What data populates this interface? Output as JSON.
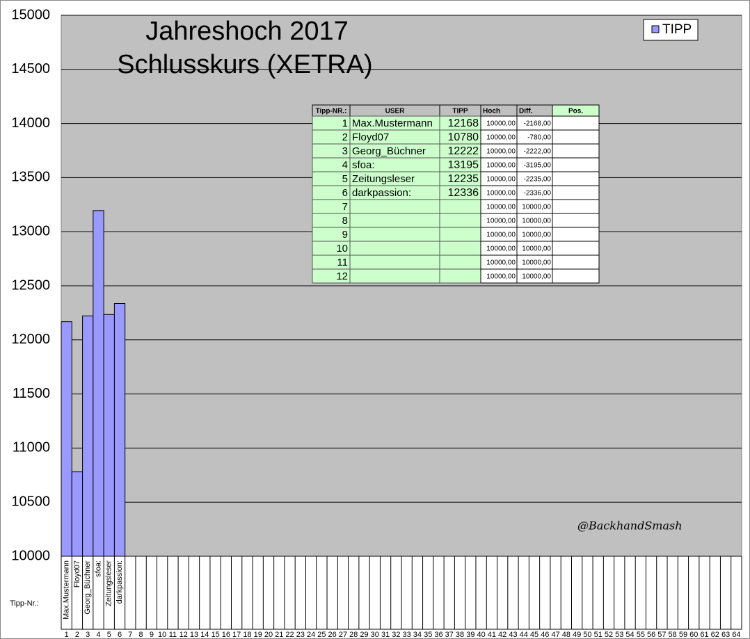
{
  "chart_data": {
    "type": "bar",
    "title": "Jahreshoch 2017",
    "subtitle": "Schlusskurs (XETRA)",
    "x_label": "Tipp-Nr.:",
    "categories": [
      1,
      2,
      3,
      4,
      5,
      6,
      7,
      8,
      9,
      10,
      11,
      12,
      13,
      14,
      15,
      16,
      17,
      18,
      19,
      20,
      21,
      22,
      23,
      24,
      25,
      26,
      27,
      28,
      29,
      30,
      31,
      32,
      33,
      34,
      35,
      36,
      37,
      38,
      39,
      40,
      41,
      42,
      43,
      44,
      45,
      46,
      47,
      48,
      49,
      50,
      51,
      52,
      53,
      54,
      55,
      56,
      57,
      58,
      59,
      60,
      61,
      62,
      63,
      64
    ],
    "user_labels": [
      "Max.Mustermann",
      "Floyd07",
      "Georg_Büchner",
      "sfoa:",
      "Zeitungsleser",
      "darkpassion:",
      null,
      null,
      null,
      null,
      null,
      null,
      null,
      null,
      null,
      null,
      null,
      null,
      null,
      null,
      null,
      null,
      null,
      null,
      null,
      null,
      null,
      null,
      null,
      null,
      null,
      null,
      null,
      null,
      null,
      null,
      null,
      null,
      null,
      null,
      null,
      null,
      null,
      null,
      null,
      null,
      null,
      null,
      null,
      null,
      null,
      null,
      null,
      null,
      null,
      null,
      null,
      null,
      null,
      null,
      null,
      null,
      null,
      null
    ],
    "series": [
      {
        "name": "TIPP",
        "color": "#9999ff",
        "values": [
          12168,
          10780,
          12222,
          13195,
          12235,
          12336,
          null,
          null,
          null,
          null,
          null,
          null,
          null,
          null,
          null,
          null,
          null,
          null,
          null,
          null,
          null,
          null,
          null,
          null,
          null,
          null,
          null,
          null,
          null,
          null,
          null,
          null,
          null,
          null,
          null,
          null,
          null,
          null,
          null,
          null,
          null,
          null,
          null,
          null,
          null,
          null,
          null,
          null,
          null,
          null,
          null,
          null,
          null,
          null,
          null,
          null,
          null,
          null,
          null,
          null,
          null,
          null,
          null,
          null
        ]
      }
    ],
    "ylim": [
      10000,
      15000
    ],
    "yticks": [
      10000,
      10500,
      11000,
      11500,
      12000,
      12500,
      13000,
      13500,
      14000,
      14500,
      15000
    ],
    "grid": true,
    "legend": "top-right",
    "annotation": "@BackhandSmash"
  },
  "table": {
    "header": [
      "Tipp-NR.:",
      "USER",
      "TIPP",
      "Hoch",
      "Diff.",
      "Pos."
    ],
    "rows": [
      [
        1,
        "Max.Mustermann",
        12168,
        "10000,00",
        "-2168,00",
        null
      ],
      [
        2,
        "Floyd07",
        10780,
        "10000,00",
        "-780,00",
        null
      ],
      [
        3,
        "Georg_Büchner",
        12222,
        "10000,00",
        "-2222,00",
        null
      ],
      [
        4,
        "sfoa:",
        13195,
        "10000,00",
        "-3195,00",
        null
      ],
      [
        5,
        "Zeitungsleser",
        12235,
        "10000,00",
        "-2235,00",
        null
      ],
      [
        6,
        "darkpassion:",
        12336,
        "10000,00",
        "-2336,00",
        null
      ],
      [
        7,
        null,
        null,
        "10000,00",
        "10000,00",
        null
      ],
      [
        8,
        null,
        null,
        "10000,00",
        "10000,00",
        null
      ],
      [
        9,
        null,
        null,
        "10000,00",
        "10000,00",
        null
      ],
      [
        10,
        null,
        null,
        "10000,00",
        "10000,00",
        null
      ],
      [
        11,
        null,
        null,
        "10000,00",
        "10000,00",
        null
      ],
      [
        12,
        null,
        null,
        "10000,00",
        "10000,00",
        null
      ]
    ]
  }
}
